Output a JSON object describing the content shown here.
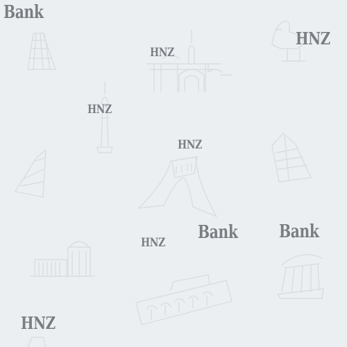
{
  "watermark": {
    "brand": "HNZ",
    "bank": "Bank"
  },
  "colors": {
    "background": "#eceff2",
    "line_art": "#d9dde1",
    "text": "#7a7e83"
  },
  "icons": [
    "milad-tower-icon",
    "azadi-tower-icon",
    "tehran-tower-icon",
    "tomb-of-hafez-icon",
    "naqsh-jahan-gate-icon",
    "palace-facade-icon",
    "pavilion-icon",
    "leaning-tower-icon",
    "persepolis-capital-icon",
    "skyscraper-icon"
  ]
}
